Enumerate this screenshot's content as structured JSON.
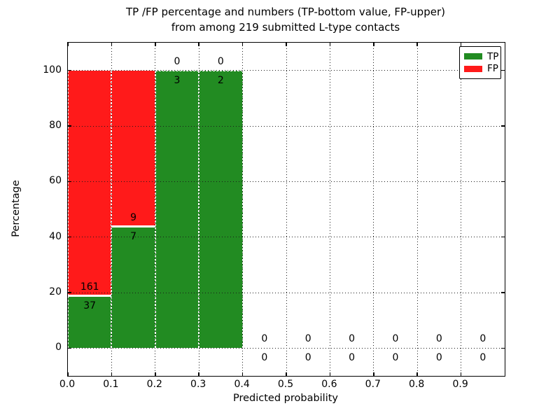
{
  "chart_data": {
    "type": "bar",
    "stacked": true,
    "title_line1": "TP /FP percentage and numbers (TP-bottom value, FP-upper)",
    "title_line2": "from among 219 submitted L-type contacts",
    "xlabel": "Predicted probability",
    "ylabel": "Percentage",
    "total_submitted": 219,
    "bins": [
      0.0,
      0.1,
      0.2,
      0.3,
      0.4,
      0.5,
      0.6,
      0.7,
      0.8,
      0.9,
      1.0
    ],
    "series": [
      {
        "name": "TP",
        "color": "#228b22",
        "counts": [
          37,
          7,
          3,
          2,
          0,
          0,
          0,
          0,
          0,
          0
        ]
      },
      {
        "name": "FP",
        "color": "#ff1a1a",
        "counts": [
          161,
          9,
          0,
          0,
          0,
          0,
          0,
          0,
          0,
          0
        ]
      }
    ],
    "tp_percent_by_bin": [
      18.7,
      43.8,
      100,
      100,
      0,
      0,
      0,
      0,
      0,
      0
    ],
    "fp_percent_by_bin": [
      81.3,
      56.2,
      0,
      0,
      0,
      0,
      0,
      0,
      0,
      0
    ],
    "xticks": [
      "0.0",
      "0.1",
      "0.2",
      "0.3",
      "0.4",
      "0.5",
      "0.6",
      "0.7",
      "0.8",
      "0.9"
    ],
    "yticks": [
      "0",
      "20",
      "40",
      "60",
      "80",
      "100"
    ],
    "xlim": [
      0,
      1
    ],
    "ylim": [
      -10,
      110
    ],
    "grid": "dotted",
    "legend_position": "upper right",
    "label_rule": "FP count above TP-segment top, TP count below it"
  }
}
